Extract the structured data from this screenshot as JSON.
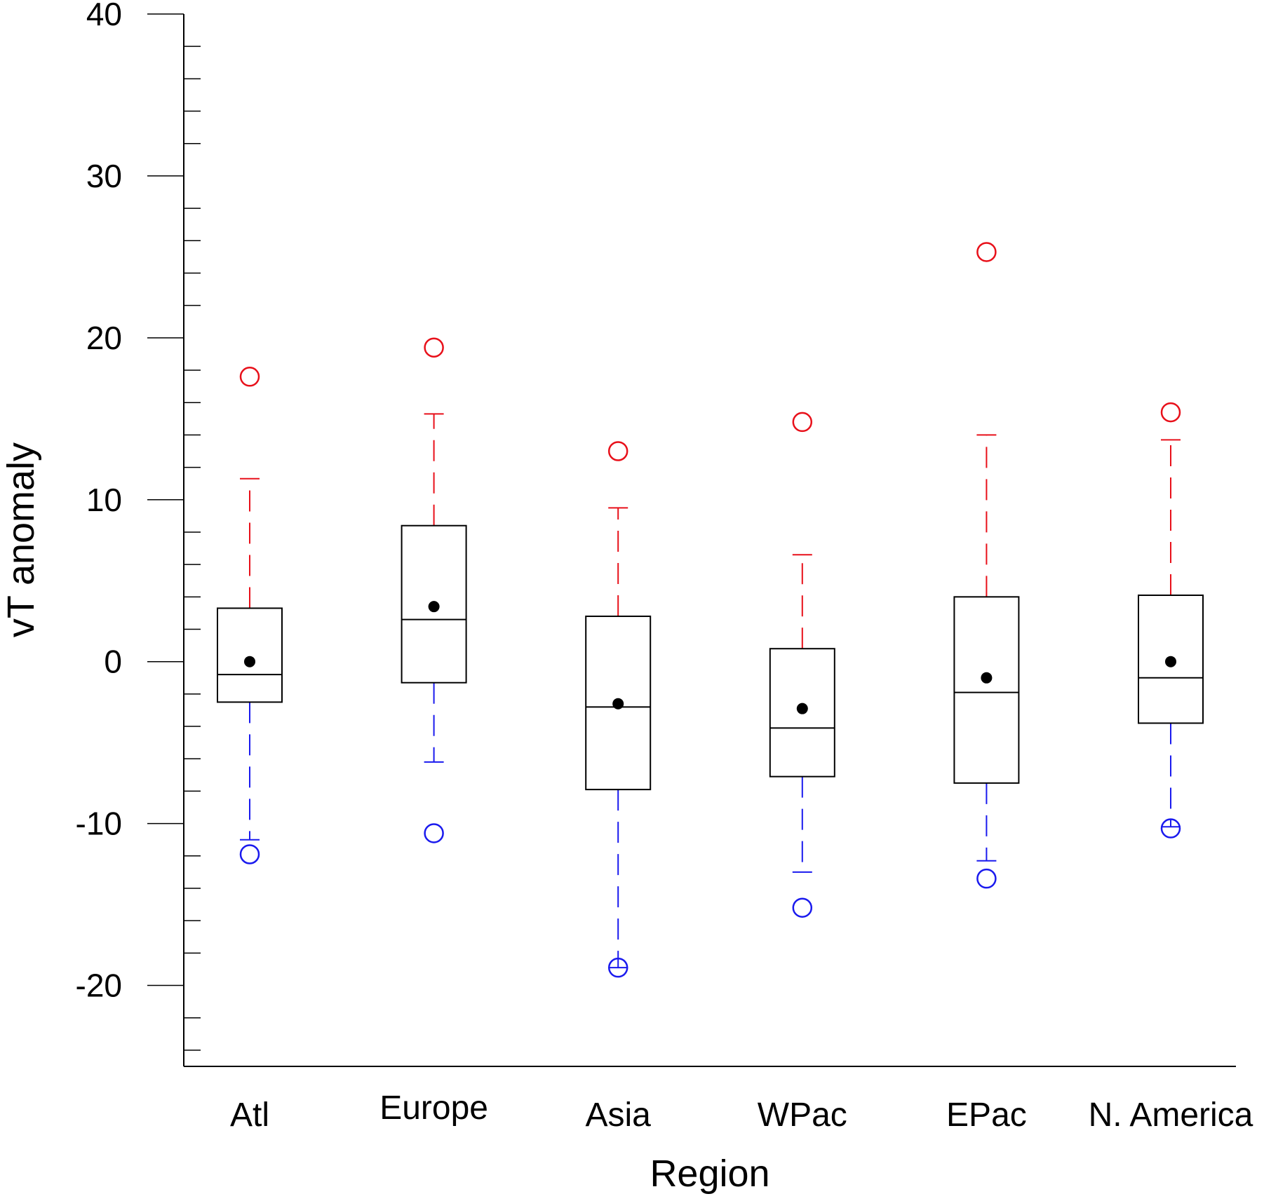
{
  "chart_data": {
    "type": "box",
    "xlabel": "Region",
    "ylabel": "vT anomaly",
    "ylim": [
      -25,
      40
    ],
    "yticks": [
      -20,
      -10,
      0,
      10,
      20,
      30,
      40
    ],
    "yminor_step": 2,
    "grid": false,
    "legend": "none",
    "colors": {
      "upper_whisker": "#e8101a",
      "lower_whisker": "#1a1aee",
      "box": "#000000",
      "mean": "#000000"
    },
    "categories": [
      "Atl",
      "Europe",
      "Asia",
      "WPac",
      "EPac",
      "N. America"
    ],
    "boxes": [
      {
        "name": "Atl",
        "q1": -2.5,
        "median": -0.8,
        "q3": 3.3,
        "whisker_low": -11.0,
        "whisker_high": 11.3,
        "mean": 0.0,
        "outlier_low": -11.9,
        "outlier_high": 17.6
      },
      {
        "name": "Europe",
        "q1": -1.3,
        "median": 2.6,
        "q3": 8.4,
        "whisker_low": -6.2,
        "whisker_high": 15.3,
        "mean": 3.4,
        "outlier_low": -10.6,
        "outlier_high": 19.4
      },
      {
        "name": "Asia",
        "q1": -7.9,
        "median": -2.8,
        "q3": 2.8,
        "whisker_low": -18.9,
        "whisker_high": 9.5,
        "mean": -2.6,
        "outlier_low": -18.9,
        "outlier_high": 13.0
      },
      {
        "name": "WPac",
        "q1": -7.1,
        "median": -4.1,
        "q3": 0.8,
        "whisker_low": -13.0,
        "whisker_high": 6.6,
        "mean": -2.9,
        "outlier_low": -15.2,
        "outlier_high": 14.8
      },
      {
        "name": "EPac",
        "q1": -7.5,
        "median": -1.9,
        "q3": 4.0,
        "whisker_low": -12.3,
        "whisker_high": 14.0,
        "mean": -1.0,
        "outlier_low": -13.4,
        "outlier_high": 25.3
      },
      {
        "name": "N. America",
        "q1": -3.8,
        "median": -1.0,
        "q3": 4.1,
        "whisker_low": -10.2,
        "whisker_high": 13.7,
        "mean": 0.0,
        "outlier_low": -10.3,
        "outlier_high": 15.4
      }
    ]
  }
}
